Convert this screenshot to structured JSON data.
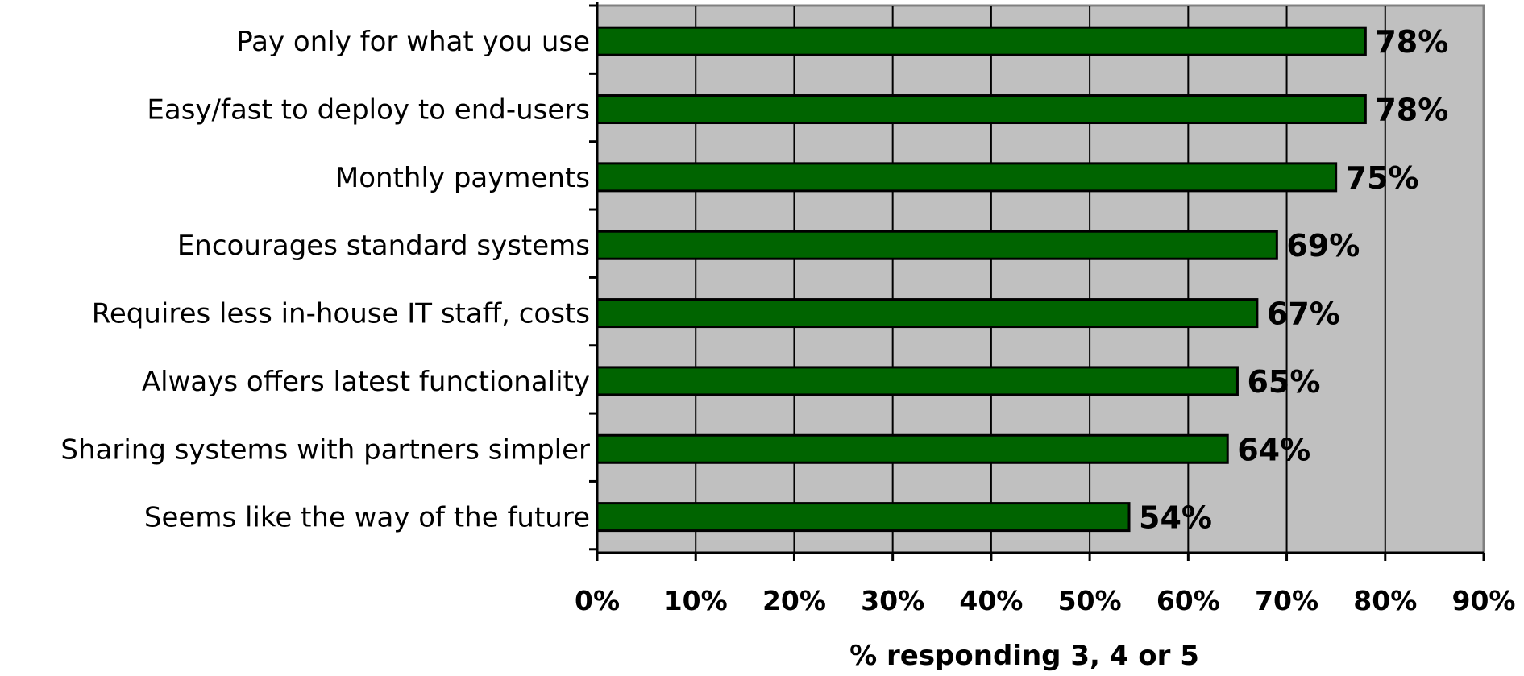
{
  "chart_data": {
    "type": "bar",
    "orientation": "horizontal",
    "categories": [
      "Pay only for what you use",
      "Easy/fast to deploy to end-users",
      "Monthly payments",
      "Encourages standard systems",
      "Requires less in-house IT staff, costs",
      "Always offers latest functionality",
      "Sharing systems with partners simpler",
      "Seems like the way of the future"
    ],
    "values": [
      78,
      78,
      75,
      69,
      67,
      65,
      64,
      54
    ],
    "value_labels": [
      "78%",
      "78%",
      "75%",
      "69%",
      "67%",
      "65%",
      "64%",
      "54%"
    ],
    "xlabel": "% responding 3, 4 or 5",
    "ylabel": "",
    "xlim": [
      0,
      90
    ],
    "x_ticks": [
      0,
      10,
      20,
      30,
      40,
      50,
      60,
      70,
      80,
      90
    ],
    "x_tick_labels": [
      "0%",
      "10%",
      "20%",
      "30%",
      "40%",
      "50%",
      "60%",
      "70%",
      "80%",
      "90%"
    ],
    "grid": true,
    "legend": "none",
    "colors": {
      "bar": "#006400",
      "plot_background": "#c0c0c0",
      "gridline": "#000000"
    }
  }
}
